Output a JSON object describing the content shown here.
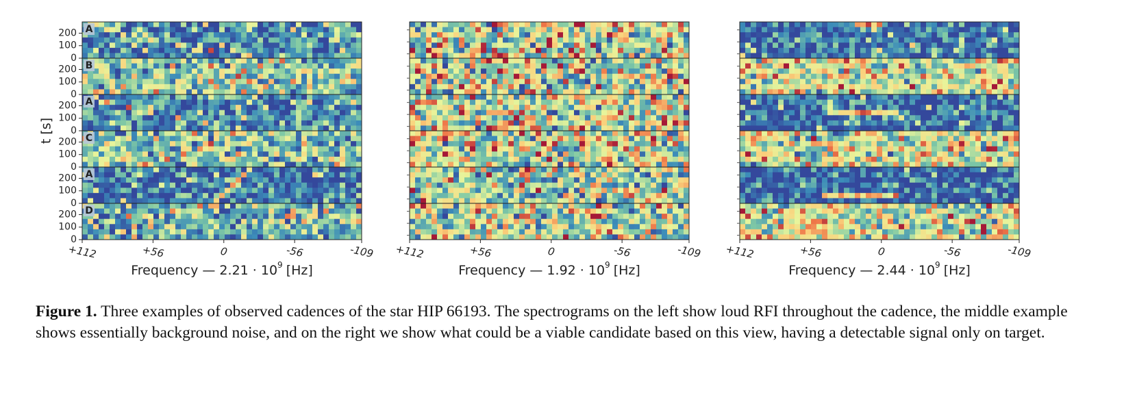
{
  "figure": {
    "panels": [
      {
        "xlabel": {
          "text": "Frequency — 2.21 · 10",
          "exponent": "9",
          "unit": "[Hz]"
        },
        "xlim": [
          112,
          -109
        ],
        "xticks": [
          {
            "value": 112,
            "label": "+112"
          },
          {
            "value": 56,
            "label": "+56"
          },
          0,
          -56,
          -109
        ],
        "ylabel": "t [s]",
        "ylim": [
          0,
          290
        ],
        "yticks": [
          0,
          100,
          200
        ],
        "row_labels": [
          "A",
          "B",
          "A",
          "C",
          "A",
          "D"
        ]
      },
      {
        "xlabel": {
          "text": "Frequency — 1.92 · 10",
          "exponent": "9",
          "unit": "[Hz]"
        },
        "xlim": [
          112,
          -109
        ],
        "xticks": [
          {
            "value": 112,
            "label": "+112"
          },
          {
            "value": 56,
            "label": "+56"
          },
          0,
          -56,
          -109
        ]
      },
      {
        "xlabel": {
          "text": "Frequency — 2.44 · 10",
          "exponent": "9",
          "unit": "[Hz]"
        },
        "xlim": [
          112,
          -109
        ],
        "xticks": [
          {
            "value": 112,
            "label": "+112"
          },
          {
            "value": 56,
            "label": "+56"
          },
          0,
          -56,
          -109
        ]
      }
    ],
    "caption": {
      "label": "Figure 1.",
      "text": "Three examples of observed cadences of the star HIP 66193. The spectrograms on the left show loud RFI throughout the cadence, the middle example shows essentially background noise, and on the right we show what could be a viable candidate based on this view, having a detectable signal only on target."
    }
  }
}
